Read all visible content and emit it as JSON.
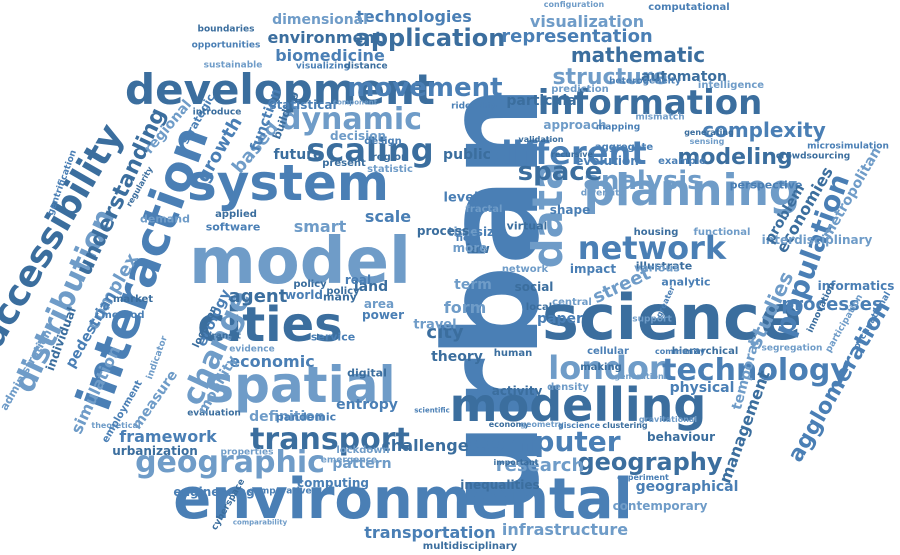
{
  "colors": {
    "background": "#ffffff",
    "primary": "#4a7fb5",
    "dark": "#3b6e9e",
    "light": "#6f9cc8"
  },
  "words": [
    "urban",
    "science",
    "model",
    "system",
    "cities",
    "spatial",
    "environmental",
    "modelling",
    "data",
    "interaction",
    "development",
    "planning",
    "network",
    "information",
    "london",
    "technology",
    "accessibility",
    "distribution",
    "different",
    "scaling",
    "dynamic",
    "movement",
    "application",
    "analysis",
    "population",
    "transport",
    "geographic",
    "computer",
    "space",
    "change",
    "economic",
    "geography",
    "research",
    "complexity",
    "modeling",
    "structure",
    "representation",
    "mathematic",
    "visualization",
    "technologies",
    "environment",
    "dimensional",
    "biomedicine",
    "understanding",
    "simulation",
    "framework",
    "agent",
    "smart",
    "processes",
    "city",
    "studies",
    "agglomeration",
    "management",
    "infrastructure",
    "transportation",
    "theory",
    "street",
    "physical",
    "activity",
    "approach",
    "evolution",
    "public",
    "based",
    "growth",
    "future",
    "form",
    "scale",
    "social",
    "time",
    "size",
    "land",
    "complex",
    "pedestrian",
    "urbanization",
    "temporal",
    "geographical",
    "challenge",
    "pattern",
    "computing",
    "inequalities",
    "definition",
    "entropy",
    "economies",
    "metropolitan",
    "informatics",
    "behaviour",
    "contemporary",
    "engineering",
    "multidisciplinary",
    "configuration",
    "computational",
    "automaton",
    "intelligence",
    "microsimulation",
    "crowdsourcing",
    "interdisciplinary",
    "perspective",
    "problem",
    "segregation",
    "occupational",
    "hierarchical",
    "support",
    "cellular",
    "human",
    "density",
    "analytic",
    "illustrate",
    "various",
    "impact",
    "housing",
    "functional",
    "example",
    "economy",
    "geometry",
    "giscience",
    "clustering",
    "gravitational",
    "experiment",
    "important",
    "lockdown",
    "pandemic",
    "evaluation",
    "theoretical",
    "employment",
    "individual",
    "administration",
    "gentrification",
    "regularity",
    "measure",
    "method",
    "market",
    "mobility",
    "ecology",
    "location",
    "evidence",
    "software",
    "applied",
    "demand",
    "strategic",
    "introduce",
    "regional",
    "function",
    "building",
    "sustainable",
    "visualizing",
    "distance",
    "decision",
    "design",
    "region",
    "statistic",
    "statistical",
    "present",
    "component",
    "ridership",
    "validation",
    "prediction",
    "heterogeneity",
    "particular",
    "mismatch",
    "mapping",
    "generating",
    "sensing",
    "aggregate",
    "recursive",
    "diversity",
    "shape",
    "virtual",
    "fractal",
    "level",
    "process",
    "indicator",
    "world",
    "policy",
    "area",
    "power",
    "digital",
    "travel",
    "paper",
    "local",
    "central",
    "field",
    "law",
    "term",
    "real",
    "many",
    "more",
    "service",
    "transit",
    "properties",
    "comparative",
    "cyberspace",
    "comparability",
    "opportunities",
    "boundaries",
    "emergence",
    "scientific",
    "making",
    "generation",
    "greater",
    "innovation",
    "participation",
    "community",
    "policy",
    "network"
  ]
}
